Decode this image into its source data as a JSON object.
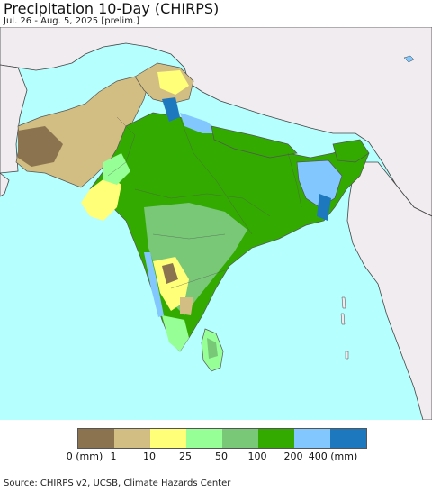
{
  "title": "Precipitation 10-Day (CHIRPS)",
  "subtitle": "Jul. 26 - Aug. 5, 2025 [prelim.]",
  "legend": {
    "colors": [
      "#8c7350",
      "#d2be82",
      "#ffff78",
      "#96ff96",
      "#78c878",
      "#32aa00",
      "#82c8ff",
      "#1e78be"
    ],
    "labels": [
      "0 (mm)",
      "1",
      "10",
      "25",
      "50",
      "100",
      "200",
      "400 (mm)"
    ]
  },
  "map": {
    "ocean_color": "#b6ffff",
    "outside_land_color": "#f0ecf0",
    "border_color": "#444444"
  },
  "source": "Source: CHIRPS v2, UCSB, Climate Hazards Center"
}
